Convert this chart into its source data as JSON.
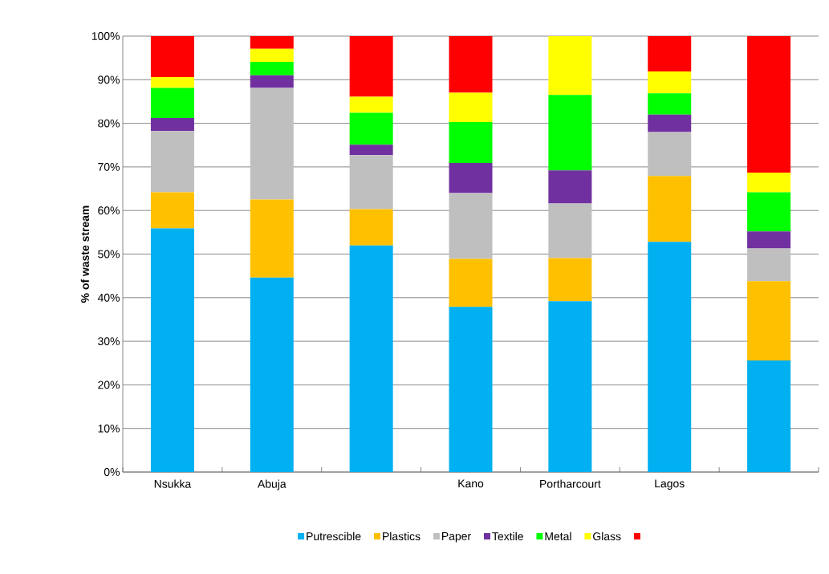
{
  "chart_data": {
    "type": "bar",
    "stacked": true,
    "ylabel": "% of waste stream",
    "categories": [
      "Nsukka",
      "Abuja",
      null,
      "Kano",
      "Portharcourt",
      "Lagos",
      null
    ],
    "series": [
      {
        "name": "Putrescible",
        "color": "#00b0f0",
        "values": [
          55.9,
          44.6,
          52.0,
          37.9,
          39.2,
          52.8,
          25.6
        ]
      },
      {
        "name": "Plastics",
        "color": "#ffc000",
        "values": [
          8.3,
          17.9,
          8.3,
          11.0,
          9.9,
          15.1,
          18.2
        ]
      },
      {
        "name": "Paper",
        "color": "#bfbfbf",
        "values": [
          14.0,
          25.6,
          12.4,
          15.1,
          12.5,
          10.1,
          7.5
        ]
      },
      {
        "name": "Textile",
        "color": "#7030a0",
        "values": [
          3.0,
          2.9,
          2.4,
          6.9,
          7.6,
          4.0,
          3.9
        ]
      },
      {
        "name": "Metal",
        "color": "#00ff00",
        "values": [
          6.9,
          3.1,
          7.3,
          9.4,
          17.3,
          4.9,
          9.0
        ]
      },
      {
        "name": "Glass",
        "color": "#ffff00",
        "values": [
          2.5,
          3.0,
          3.7,
          6.7,
          13.5,
          5.0,
          4.5
        ]
      },
      {
        "name": null,
        "color": "#ff0000",
        "values": [
          9.4,
          2.9,
          13.9,
          13.0,
          0.0,
          8.1,
          31.3
        ]
      }
    ],
    "ylim": [
      0,
      100
    ],
    "yticks": [
      {
        "value": 0,
        "label": "0%"
      },
      {
        "value": 10,
        "label": "10%"
      },
      {
        "value": 20,
        "label": "20%"
      },
      {
        "value": 30,
        "label": "30%"
      },
      {
        "value": 40,
        "label": "40%"
      },
      {
        "value": 50,
        "label": "50%"
      },
      {
        "value": 60,
        "label": "60%"
      },
      {
        "value": 70,
        "label": "70%"
      },
      {
        "value": 80,
        "label": "80%"
      },
      {
        "value": 90,
        "label": "90%"
      },
      {
        "value": 100,
        "label": "100%"
      }
    ],
    "grid": "y",
    "legend": "bottom"
  }
}
